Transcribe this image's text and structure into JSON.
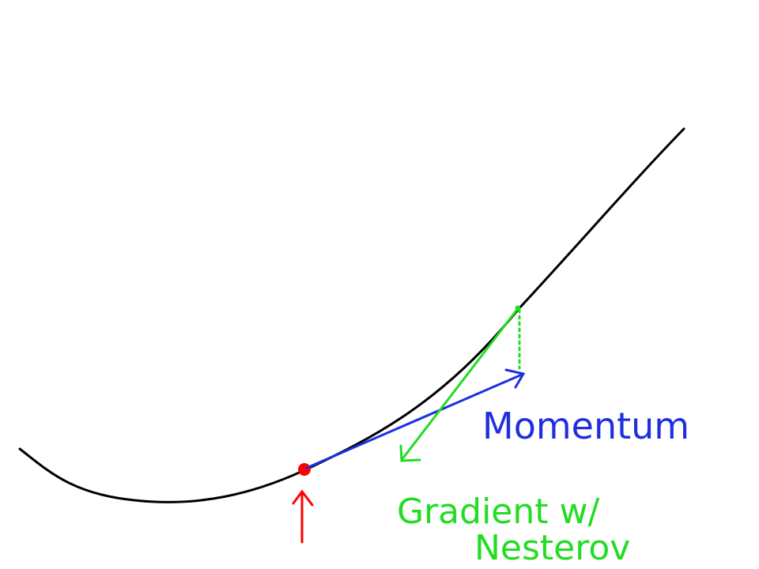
{
  "labels": {
    "momentum": "Momentum",
    "gradient_line1": "Gradient w/",
    "gradient_line2": "Nesterov"
  },
  "colors": {
    "curve": "#000000",
    "point": "#ff0000",
    "momentum": "#1f2fe0",
    "gradient": "#22dd22",
    "pointer": "#ff0000"
  }
}
